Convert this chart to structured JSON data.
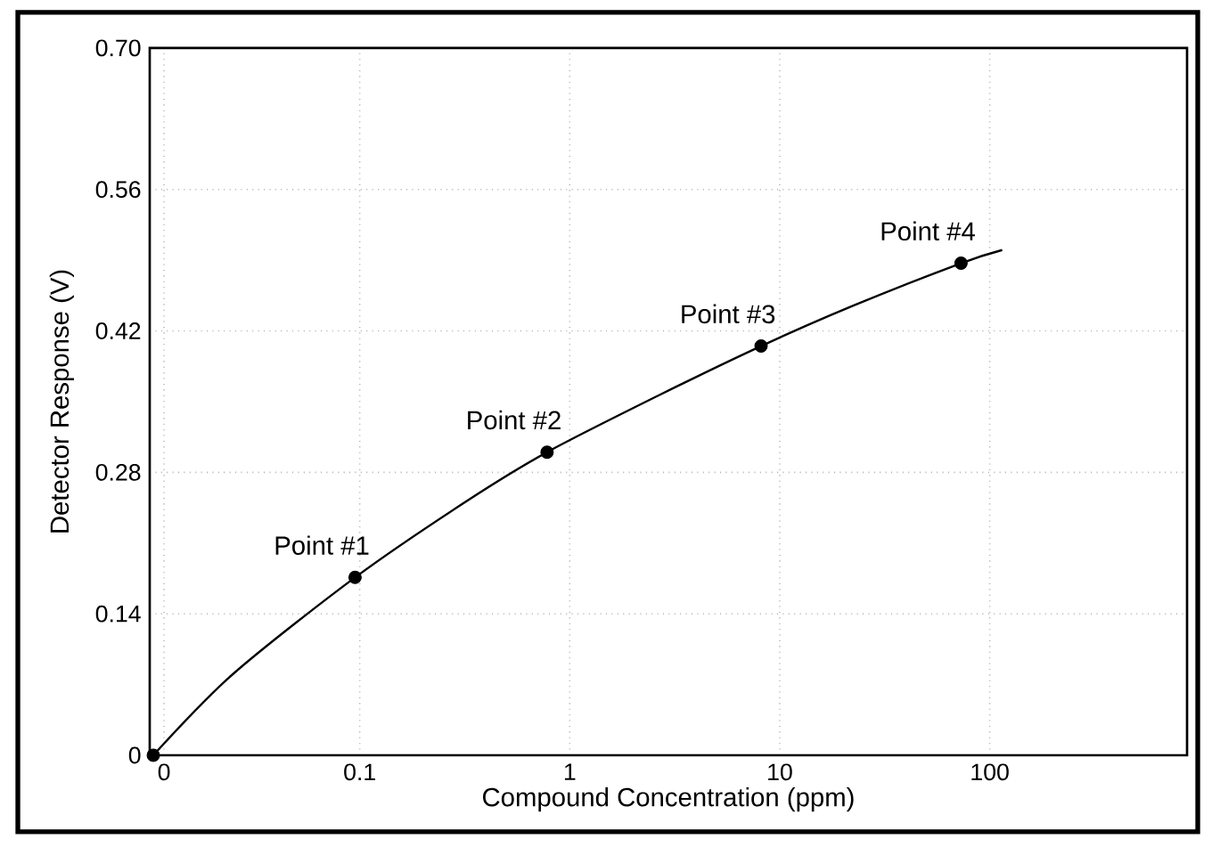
{
  "chart_data": {
    "type": "scatter",
    "xlabel": "Compound Concentration (ppm)",
    "ylabel": "Detector Response (V)",
    "log": "x",
    "grid": true,
    "marker": "circle",
    "xlim": [
      0.01,
      870
    ],
    "ylim": [
      0,
      0.7
    ],
    "xticks": [
      {
        "value": 0.0117,
        "label": "0"
      },
      0.1,
      1,
      10,
      100
    ],
    "yticks": [
      0,
      0.14,
      0.28,
      0.42,
      0.56,
      {
        "value": 0.7,
        "label": "0.70"
      }
    ],
    "series": [
      {
        "type": "line",
        "marker": "none",
        "line_style": "solid",
        "color": "#000000",
        "x": [
          0.0104,
          0.0248,
          0.095,
          0.32,
          0.78,
          2.7,
          8.15,
          22.4,
          73,
          114.6
        ],
        "values": [
          0,
          0.08,
          0.176,
          0.251,
          0.3,
          0.357,
          0.405,
          0.445,
          0.487,
          0.5
        ]
      },
      {
        "color": "#000000",
        "x": [
          0.0104,
          0.095,
          0.78,
          8.15,
          73
        ],
        "values": [
          0,
          0.176,
          0.3,
          0.405,
          0.487
        ]
      }
    ],
    "annotations": [
      {
        "text": "Point #1",
        "x": 0.095,
        "y": 0.176
      },
      {
        "text": "Point #2",
        "x": 0.78,
        "y": 0.3
      },
      {
        "text": "Point #3",
        "x": 8.15,
        "y": 0.405
      },
      {
        "text": "Point #4",
        "x": 73,
        "y": 0.487
      }
    ]
  }
}
